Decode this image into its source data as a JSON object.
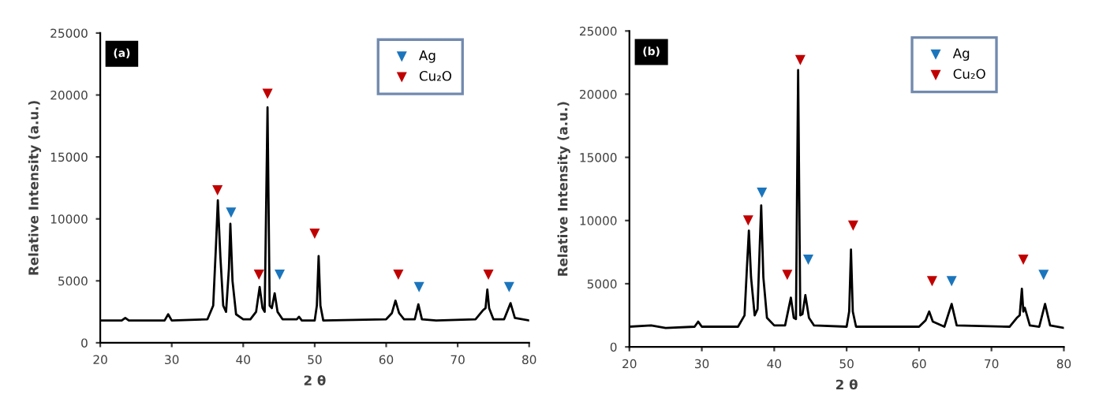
{
  "chart_data": [
    {
      "type": "line",
      "xlabel": "2 θ",
      "ylabel": "Relative Intensity (a.u.)",
      "xlim": [
        20,
        80
      ],
      "xticks": [
        20,
        30,
        40,
        50,
        60,
        70,
        80
      ],
      "ylim": [
        0,
        25000
      ],
      "yticks": [
        0,
        5000,
        10000,
        15000,
        20000,
        25000
      ],
      "grid": false,
      "legend": "top right",
      "annotations": [
        "(a)"
      ],
      "series": [
        {
          "color": "#000000",
          "x": [
            20,
            23,
            23.5,
            24,
            29,
            29.5,
            30,
            35,
            35.8,
            36.2,
            36.45,
            36.8,
            37.2,
            37.6,
            38.0,
            38.2,
            38.5,
            39,
            40,
            41,
            41.8,
            42.3,
            42.7,
            43.0,
            43.4,
            43.7,
            44.0,
            44.4,
            44.8,
            45.5,
            47.5,
            47.8,
            48.2,
            50.0,
            50.3,
            50.55,
            50.8,
            51.2,
            60,
            60.8,
            61.3,
            61.8,
            62.5,
            64,
            64.5,
            65,
            67,
            72.5,
            73.5,
            73.9,
            74.15,
            74.4,
            75,
            76.5,
            77.4,
            78,
            80
          ],
          "values": [
            1800,
            1800,
            2000,
            1800,
            1800,
            2300,
            1800,
            1900,
            3000,
            8000,
            11500,
            7000,
            3000,
            2500,
            6000,
            9600,
            5000,
            2300,
            1900,
            1900,
            2500,
            4500,
            2800,
            2500,
            19000,
            3000,
            2800,
            4000,
            2500,
            1900,
            1900,
            2100,
            1800,
            1800,
            3000,
            7000,
            3000,
            1800,
            1900,
            2400,
            3400,
            2400,
            1900,
            1900,
            3100,
            1900,
            1800,
            1900,
            2600,
            2800,
            4300,
            2800,
            1900,
            1900,
            3200,
            2000,
            1800
          ]
        },
        {
          "type": "scatter",
          "name": "Ag",
          "color": "#1b75bc",
          "marker": "triangle",
          "x": [
            38.3,
            45.1,
            64.6,
            77.2
          ],
          "values": [
            10500,
            5500,
            4500,
            4500
          ]
        },
        {
          "type": "scatter",
          "name": "Cu₂O",
          "color": "#c00000",
          "marker": "triangle",
          "x": [
            36.4,
            42.2,
            43.4,
            50.0,
            61.7,
            74.3
          ],
          "values": [
            12300,
            5500,
            20100,
            8800,
            5500,
            5500
          ]
        }
      ]
    },
    {
      "type": "line",
      "xlabel": "2 θ",
      "ylabel": "Relative Intensity (a.u.)",
      "xlim": [
        20,
        80
      ],
      "xticks": [
        20,
        30,
        40,
        50,
        60,
        70,
        80
      ],
      "ylim": [
        0,
        25000
      ],
      "yticks": [
        0,
        5000,
        10000,
        15000,
        20000,
        25000
      ],
      "grid": false,
      "legend": "top right",
      "annotations": [
        "(b)"
      ],
      "series": [
        {
          "color": "#000000",
          "x": [
            20,
            23,
            25,
            29,
            29.5,
            30,
            35,
            35.9,
            36.25,
            36.5,
            36.8,
            37.3,
            37.7,
            38.0,
            38.2,
            38.5,
            39,
            40,
            41.5,
            42.3,
            42.7,
            43.0,
            43.3,
            43.6,
            43.9,
            44.3,
            44.8,
            45.5,
            50.0,
            50.35,
            50.6,
            50.85,
            51.3,
            60,
            60.9,
            61.4,
            61.9,
            63.5,
            64.5,
            65.2,
            72.5,
            73.5,
            73.9,
            74.2,
            74.4,
            74.6,
            75.3,
            76.6,
            77.4,
            78.1,
            80
          ],
          "values": [
            1600,
            1700,
            1500,
            1600,
            2000,
            1600,
            1600,
            2500,
            6500,
            9200,
            5500,
            2500,
            3000,
            8000,
            11200,
            5500,
            2300,
            1700,
            1700,
            3900,
            2300,
            2200,
            21900,
            2500,
            2600,
            4100,
            2300,
            1700,
            1600,
            2800,
            7700,
            2800,
            1600,
            1600,
            2100,
            2800,
            2000,
            1600,
            3400,
            1700,
            1600,
            2300,
            2500,
            4600,
            2800,
            3100,
            1700,
            1600,
            3400,
            1700,
            1500
          ]
        },
        {
          "type": "scatter",
          "name": "Ag",
          "color": "#1b75bc",
          "marker": "triangle",
          "x": [
            38.3,
            44.7,
            64.5,
            77.2
          ],
          "values": [
            12200,
            6900,
            5200,
            5700
          ]
        },
        {
          "type": "scatter",
          "name": "Cu₂O",
          "color": "#c00000",
          "marker": "triangle",
          "x": [
            36.4,
            41.8,
            43.6,
            50.9,
            61.8,
            74.4
          ],
          "values": [
            10000,
            5700,
            22700,
            9600,
            5200,
            6900
          ]
        }
      ]
    }
  ]
}
